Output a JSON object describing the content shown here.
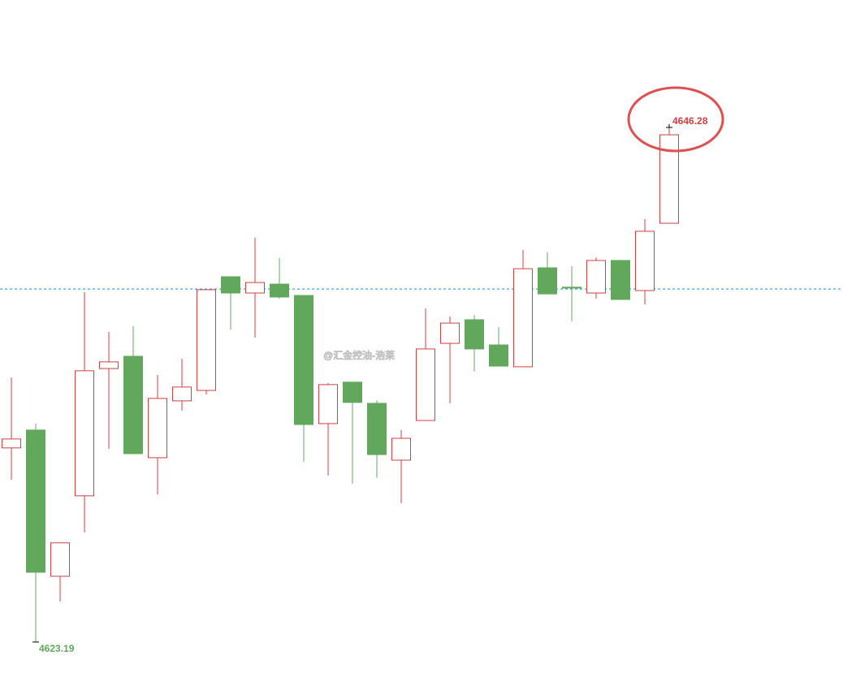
{
  "chart_data": {
    "type": "candlestick",
    "open": [
      4631.9,
      4632.7,
      4626.14,
      4629.75,
      4635.46,
      4636.01,
      4631.46,
      4634.01,
      4634.48,
      4639.58,
      4638.85,
      4639.25,
      4638.74,
      4632.99,
      4634.85,
      4633.9,
      4631.35,
      4633.13,
      4636.59,
      4637.65,
      4636.52,
      4635.54,
      4639.98,
      4639.11,
      4638.85,
      4640.31,
      4638.96,
      4641.98
    ],
    "high": [
      4635.06,
      4632.99,
      4627.64,
      4638.89,
      4637.1,
      4637.36,
      4635.17,
      4635.9,
      4639.0,
      4639.58,
      4641.33,
      4640.42,
      4638.74,
      4634.81,
      4634.85,
      4634.04,
      4632.7,
      4638.16,
      4637.8,
      4637.87,
      4637.32,
      4640.78,
      4640.67,
      4640.05,
      4640.45,
      4640.34,
      4642.17,
      4646.28
    ],
    "low": [
      4630.47,
      4623.19,
      4625.01,
      4628.11,
      4631.86,
      4631.64,
      4629.82,
      4633.57,
      4634.3,
      4637.21,
      4636.85,
      4638.6,
      4631.28,
      4630.66,
      4630.29,
      4630.55,
      4629.42,
      4633.13,
      4633.9,
      4635.32,
      4635.57,
      4635.54,
      4638.81,
      4637.58,
      4638.6,
      4638.56,
      4638.34,
      4641.98
    ],
    "close": [
      4632.3,
      4626.32,
      4627.64,
      4635.36,
      4635.76,
      4631.64,
      4634.12,
      4634.63,
      4639.0,
      4638.85,
      4639.32,
      4638.67,
      4632.95,
      4634.74,
      4633.94,
      4631.6,
      4632.33,
      4636.34,
      4637.5,
      4636.34,
      4635.57,
      4639.94,
      4638.81,
      4639.07,
      4640.31,
      4638.56,
      4641.62,
      4645.95
    ],
    "up_color": "#d23f3f",
    "down_color": "#61a85d",
    "hline": 4639.03,
    "hline_color": "#2a8fc7",
    "watermark": "@汇金控油-浩莱"
  }
}
